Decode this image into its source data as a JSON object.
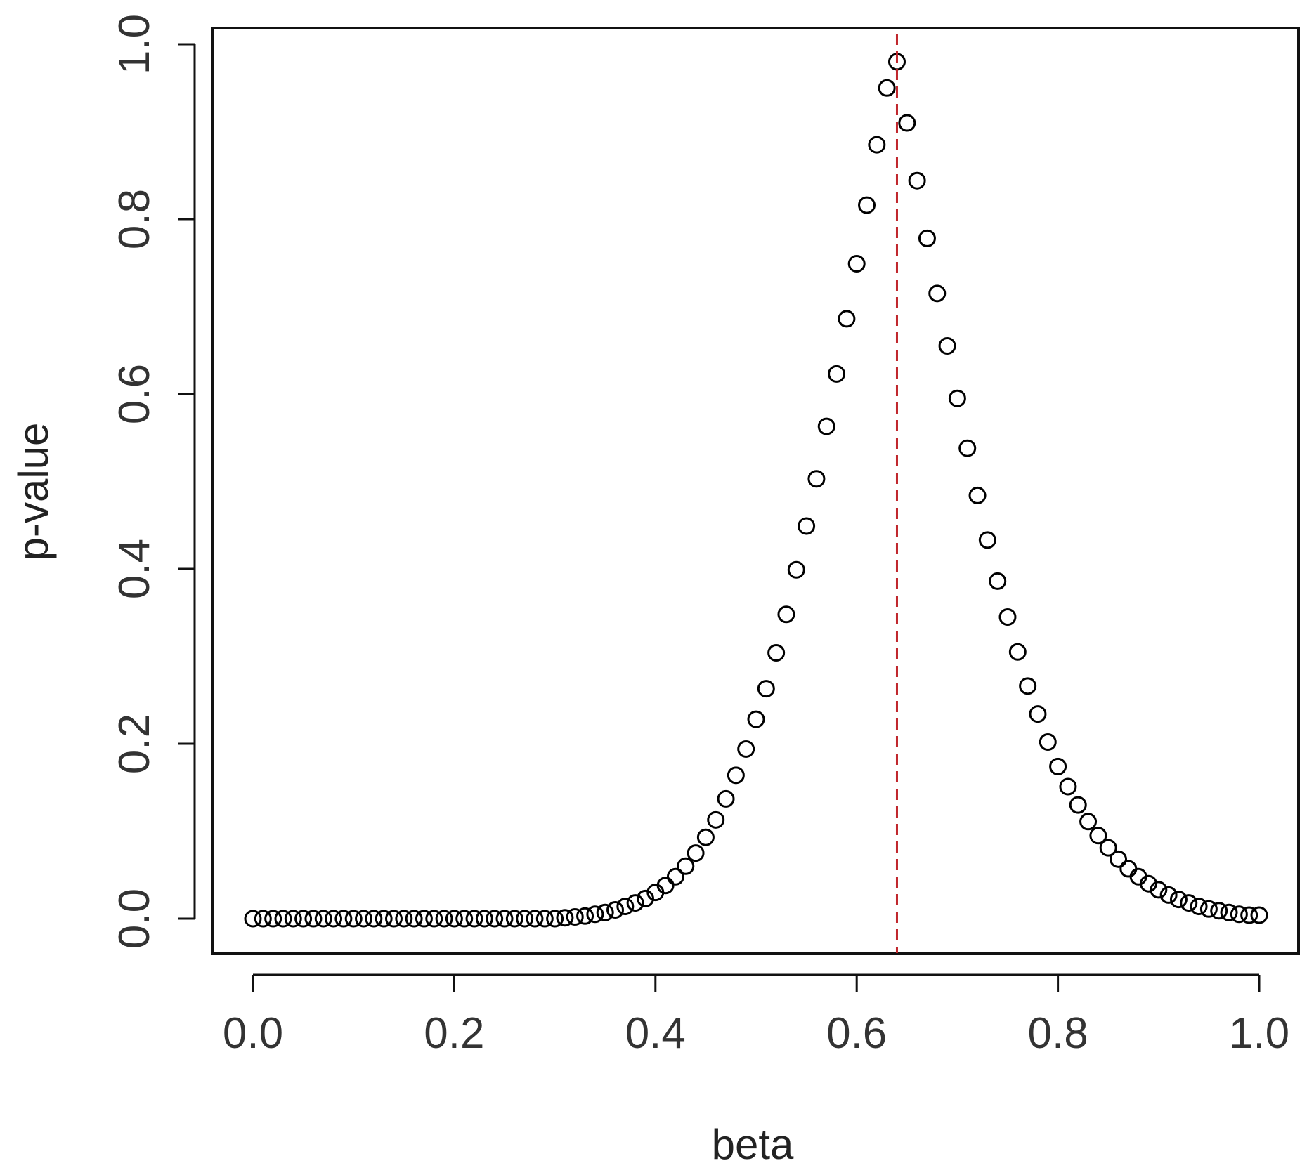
{
  "chart_data": {
    "type": "scatter",
    "title": "",
    "xlabel": "beta",
    "ylabel": "p-value",
    "xlim": [
      0.0,
      1.0
    ],
    "ylim": [
      0.0,
      1.0
    ],
    "x_ticks": [
      "0.0",
      "0.2",
      "0.4",
      "0.6",
      "0.8",
      "1.0"
    ],
    "y_ticks": [
      "0.0",
      "0.2",
      "0.4",
      "0.6",
      "0.8",
      "1.0"
    ],
    "grid": false,
    "legend": "none",
    "marker": "open-circle",
    "marker_color": "#000000",
    "reference_line": {
      "orientation": "vertical",
      "x": 0.64,
      "style": "dashed",
      "color": "#c0262c"
    },
    "series": [
      {
        "x": [
          0.0,
          0.01,
          0.02,
          0.03,
          0.04,
          0.05,
          0.06,
          0.07,
          0.08,
          0.09,
          0.1,
          0.11,
          0.12,
          0.13,
          0.14,
          0.15,
          0.16,
          0.17,
          0.18,
          0.19,
          0.2,
          0.21,
          0.22,
          0.23,
          0.24,
          0.25,
          0.26,
          0.27,
          0.28,
          0.29,
          0.3,
          0.31,
          0.32,
          0.33,
          0.34,
          0.35,
          0.36,
          0.37,
          0.38,
          0.39,
          0.4,
          0.41,
          0.42,
          0.43,
          0.44,
          0.45,
          0.46,
          0.47,
          0.48,
          0.49,
          0.5,
          0.51,
          0.52,
          0.53,
          0.54,
          0.55,
          0.56,
          0.57,
          0.58,
          0.59,
          0.6,
          0.61,
          0.62,
          0.63,
          0.64,
          0.65,
          0.66,
          0.67,
          0.68,
          0.69,
          0.7,
          0.71,
          0.72,
          0.73,
          0.74,
          0.75,
          0.76,
          0.77,
          0.78,
          0.79,
          0.8,
          0.81,
          0.82,
          0.83,
          0.84,
          0.85,
          0.86,
          0.87,
          0.88,
          0.89,
          0.9,
          0.91,
          0.92,
          0.93,
          0.94,
          0.95,
          0.96,
          0.97,
          0.98,
          0.99,
          1.0
        ],
        "y": [
          0.0,
          0.0,
          0.0,
          0.0,
          0.0,
          0.0,
          0.0,
          0.0,
          0.0,
          0.0,
          0.0,
          0.0,
          0.0,
          0.0,
          0.0,
          0.0,
          0.0,
          0.0,
          0.0,
          0.0,
          0.0,
          0.0,
          0.0,
          0.0,
          0.0,
          0.0,
          0.0,
          0.0,
          0.0,
          0.0,
          0.0,
          0.001,
          0.002,
          0.003,
          0.005,
          0.007,
          0.01,
          0.014,
          0.018,
          0.023,
          0.03,
          0.038,
          0.048,
          0.06,
          0.075,
          0.093,
          0.113,
          0.137,
          0.164,
          0.194,
          0.228,
          0.263,
          0.304,
          0.348,
          0.399,
          0.449,
          0.503,
          0.563,
          0.623,
          0.686,
          0.749,
          0.816,
          0.885,
          0.95,
          0.98,
          0.91,
          0.844,
          0.778,
          0.715,
          0.655,
          0.595,
          0.538,
          0.484,
          0.433,
          0.386,
          0.345,
          0.305,
          0.266,
          0.234,
          0.202,
          0.174,
          0.151,
          0.13,
          0.111,
          0.095,
          0.081,
          0.068,
          0.057,
          0.048,
          0.04,
          0.033,
          0.027,
          0.022,
          0.018,
          0.014,
          0.011,
          0.009,
          0.007,
          0.005,
          0.004,
          0.004
        ]
      }
    ]
  }
}
